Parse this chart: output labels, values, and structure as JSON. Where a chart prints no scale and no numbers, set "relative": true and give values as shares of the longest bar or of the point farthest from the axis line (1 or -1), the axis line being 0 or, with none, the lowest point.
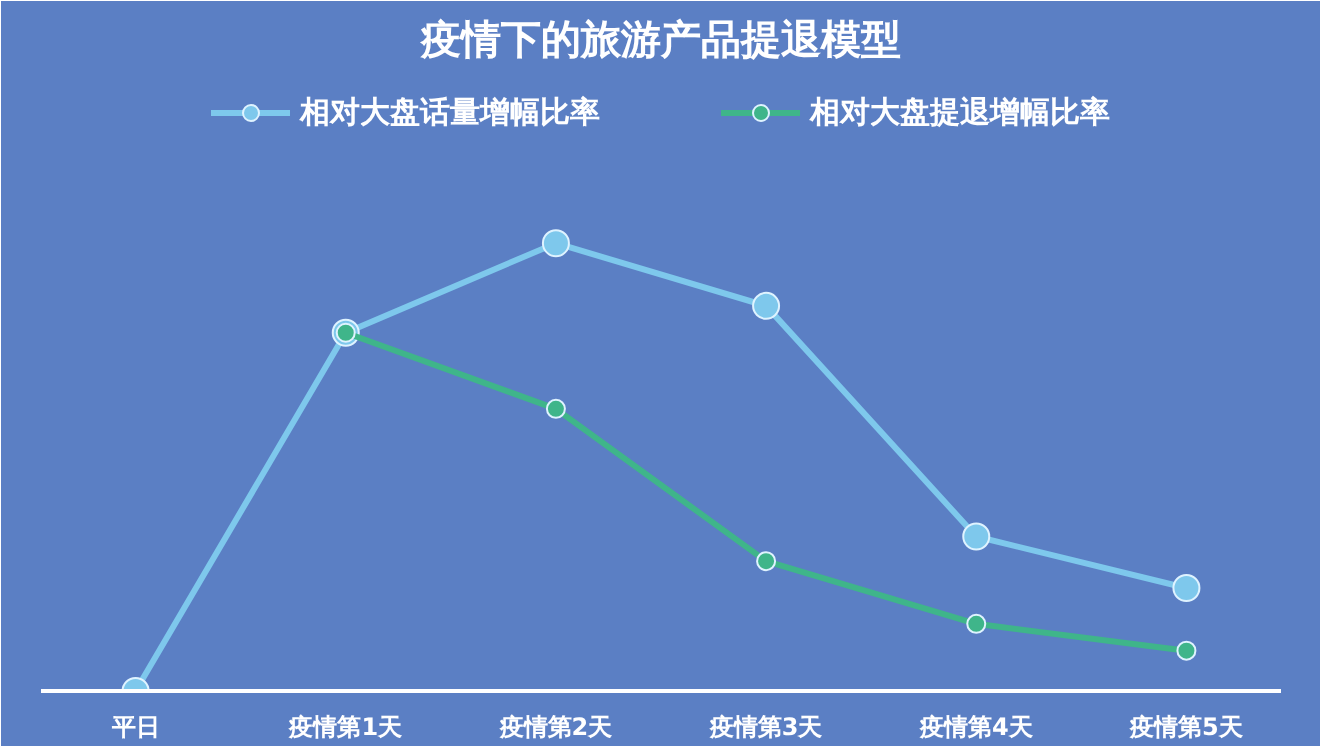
{
  "chart_data": {
    "type": "line",
    "title": "疫情下的旅游产品提退模型",
    "relative": true,
    "legend": "top",
    "marker": "circle",
    "line_style": "solid",
    "categories": [
      "平日",
      "疫情第1天",
      "疫情第2天",
      "疫情第3天",
      "疫情第4天",
      "疫情第5天"
    ],
    "series": [
      {
        "name": "相对大盘话量增幅比率",
        "color": "#7ec8ec",
        "values": [
          0,
          0.8,
          1,
          0.86,
          0.345,
          0.23
        ]
      },
      {
        "name": "相对大盘提退增幅比率",
        "color": "#3fb58a",
        "values": [
          null,
          0.8,
          0.63,
          0.29,
          0.15,
          0.09
        ]
      }
    ]
  }
}
